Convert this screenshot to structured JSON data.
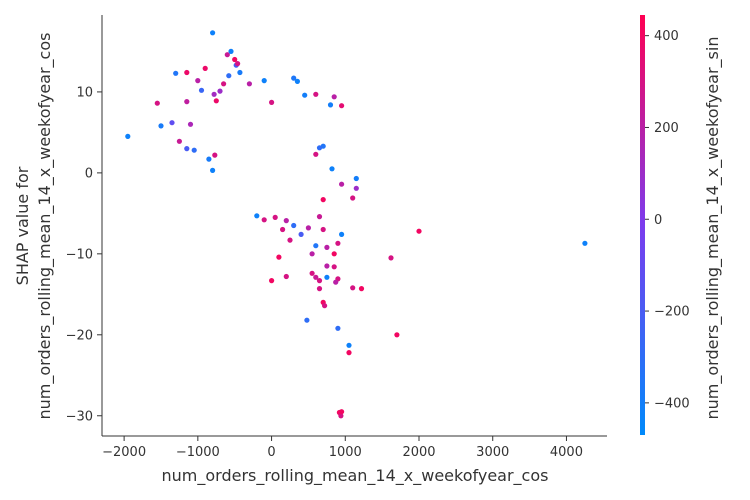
{
  "chart_data": {
    "type": "scatter",
    "xlabel": "num_orders_rolling_mean_14_x_weekofyear_cos",
    "ylabel_line1": "SHAP value for",
    "ylabel_line2": "num_orders_rolling_mean_14_x_weekofyear_cos",
    "colorbar_label": "num_orders_rolling_mean_14_x_weekofyear_sin",
    "xlim": [
      -2300,
      4550
    ],
    "ylim": [
      -32.5,
      19.5
    ],
    "xticks": [
      -2000,
      -1000,
      0,
      1000,
      2000,
      3000,
      4000
    ],
    "yticks": [
      -30,
      -20,
      -10,
      0,
      10
    ],
    "color_range": [
      -470,
      445
    ],
    "color_ticks": [
      -400,
      -200,
      0,
      200,
      400
    ],
    "colormap": [
      "#008afb",
      "#7c3cee",
      "#ff0052"
    ],
    "grid": false,
    "point_count_estimate": 1000,
    "points": [
      [
        -1950,
        4.5,
        -420
      ],
      [
        -1550,
        8.6,
        300
      ],
      [
        -1500,
        5.8,
        -380
      ],
      [
        -1350,
        6.2,
        -120
      ],
      [
        -1300,
        12.3,
        -350
      ],
      [
        -1250,
        3.9,
        250
      ],
      [
        -1150,
        12.4,
        380
      ],
      [
        -1150,
        8.8,
        220
      ],
      [
        -1150,
        3.0,
        -200
      ],
      [
        -1100,
        6.0,
        150
      ],
      [
        -1050,
        2.8,
        -300
      ],
      [
        -1000,
        11.4,
        200
      ],
      [
        -950,
        10.2,
        -260
      ],
      [
        -900,
        12.9,
        380
      ],
      [
        -850,
        1.7,
        -380
      ],
      [
        -800,
        17.3,
        -420
      ],
      [
        -800,
        0.3,
        -420
      ],
      [
        -780,
        9.7,
        120
      ],
      [
        -770,
        2.2,
        300
      ],
      [
        -750,
        8.9,
        380
      ],
      [
        -700,
        10.1,
        100
      ],
      [
        -650,
        11.0,
        300
      ],
      [
        -600,
        14.6,
        250
      ],
      [
        -580,
        12.0,
        -300
      ],
      [
        -550,
        15.0,
        -410
      ],
      [
        -500,
        14.0,
        400
      ],
      [
        -480,
        13.3,
        -200
      ],
      [
        -460,
        13.5,
        300
      ],
      [
        -430,
        12.4,
        -380
      ],
      [
        -300,
        11.0,
        200
      ],
      [
        -100,
        11.4,
        -420
      ],
      [
        0,
        8.7,
        300
      ],
      [
        300,
        11.7,
        -360
      ],
      [
        350,
        11.3,
        -420
      ],
      [
        450,
        9.6,
        -400
      ],
      [
        600,
        9.7,
        300
      ],
      [
        850,
        9.4,
        200
      ],
      [
        950,
        8.3,
        350
      ],
      [
        800,
        8.4,
        -400
      ],
      [
        700,
        3.3,
        -350
      ],
      [
        600,
        2.3,
        300
      ],
      [
        650,
        3.1,
        -300
      ],
      [
        820,
        0.5,
        -420
      ],
      [
        950,
        -1.4,
        200
      ],
      [
        1150,
        -0.7,
        -400
      ],
      [
        1150,
        -1.9,
        100
      ],
      [
        1100,
        -3.1,
        300
      ],
      [
        700,
        -3.3,
        400
      ],
      [
        650,
        -5.4,
        250
      ],
      [
        700,
        -7.0,
        300
      ],
      [
        600,
        -9.0,
        -350
      ],
      [
        750,
        -9.2,
        200
      ],
      [
        900,
        -8.7,
        300
      ],
      [
        950,
        -7.6,
        -420
      ],
      [
        850,
        -10.0,
        400
      ],
      [
        550,
        -10.0,
        200
      ],
      [
        550,
        -12.4,
        300
      ],
      [
        600,
        -12.9,
        250
      ],
      [
        650,
        -13.3,
        300
      ],
      [
        750,
        -11.5,
        200
      ],
      [
        850,
        -11.6,
        300
      ],
      [
        750,
        -12.9,
        -420
      ],
      [
        900,
        -13.1,
        300
      ],
      [
        870,
        -13.5,
        200
      ],
      [
        650,
        -14.3,
        300
      ],
      [
        700,
        -16.0,
        400
      ],
      [
        720,
        -16.4,
        300
      ],
      [
        1050,
        -21.3,
        -420
      ],
      [
        1050,
        -22.2,
        400
      ],
      [
        900,
        -19.2,
        -300
      ],
      [
        480,
        -18.2,
        -300
      ],
      [
        920,
        -29.6,
        400
      ],
      [
        940,
        -30.0,
        300
      ],
      [
        950,
        -29.5,
        400
      ],
      [
        1100,
        -14.2,
        300
      ],
      [
        1220,
        -14.3,
        400
      ],
      [
        1620,
        -10.5,
        300
      ],
      [
        1700,
        -20.0,
        400
      ],
      [
        2000,
        -7.2,
        400
      ],
      [
        4250,
        -8.7,
        -420
      ],
      [
        200,
        -12.8,
        300
      ],
      [
        100,
        -10.4,
        400
      ],
      [
        0,
        -13.3,
        400
      ],
      [
        250,
        -8.3,
        300
      ],
      [
        400,
        -7.6,
        -200
      ],
      [
        150,
        -7.0,
        300
      ],
      [
        300,
        -6.5,
        -300
      ],
      [
        200,
        -5.9,
        200
      ],
      [
        -100,
        -5.8,
        300
      ],
      [
        -200,
        -5.3,
        -420
      ],
      [
        50,
        -5.5,
        300
      ],
      [
        500,
        -6.8,
        200
      ]
    ]
  }
}
